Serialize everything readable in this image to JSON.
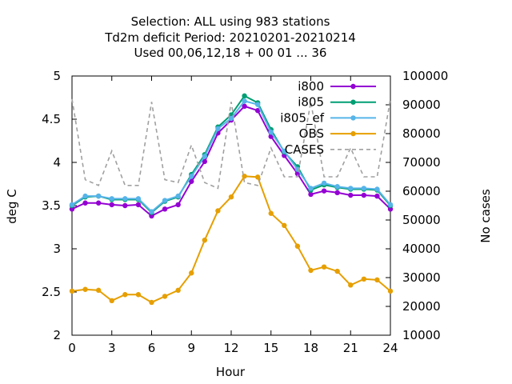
{
  "chart_data": {
    "type": "line",
    "title_lines": [
      "Selection: ALL using   983 stations",
      "Td2m deficit   Period: 20210201-20210214",
      "Used  00,06,12,18 + 00 01 ... 36"
    ],
    "xlabel": "Hour",
    "ylabel": "deg C",
    "y2label": "No cases",
    "xlim": [
      0,
      24
    ],
    "ylim": [
      2,
      5
    ],
    "y2lim": [
      10000,
      100000
    ],
    "x_ticks": [
      0,
      3,
      6,
      9,
      12,
      15,
      18,
      21,
      24
    ],
    "y_ticks": [
      "2",
      "2.5",
      "3",
      "3.5",
      "4",
      "4.5",
      "5"
    ],
    "y2_ticks": [
      "10000",
      "20000",
      "30000",
      "40000",
      "50000",
      "60000",
      "70000",
      "80000",
      "90000",
      "100000"
    ],
    "legend_position": "top-right",
    "grid": false,
    "x": [
      0,
      1,
      2,
      3,
      4,
      5,
      6,
      7,
      8,
      9,
      10,
      11,
      12,
      13,
      14,
      15,
      16,
      17,
      18,
      19,
      20,
      21,
      22,
      23,
      24
    ],
    "series": [
      {
        "name": "i800",
        "color": "#9400d3",
        "axis": "y",
        "values": [
          3.46,
          3.53,
          3.53,
          3.51,
          3.5,
          3.51,
          3.38,
          3.46,
          3.51,
          3.78,
          4.01,
          4.34,
          4.49,
          4.65,
          4.6,
          4.3,
          4.08,
          3.87,
          3.63,
          3.67,
          3.65,
          3.62,
          3.62,
          3.61,
          3.46
        ]
      },
      {
        "name": "i805",
        "color": "#009e73",
        "axis": "y",
        "values": [
          3.5,
          3.6,
          3.61,
          3.57,
          3.57,
          3.57,
          3.42,
          3.55,
          3.6,
          3.86,
          4.09,
          4.41,
          4.55,
          4.77,
          4.69,
          4.38,
          4.12,
          3.95,
          3.68,
          3.74,
          3.71,
          3.69,
          3.69,
          3.68,
          3.5
        ]
      },
      {
        "name": "i805_ef",
        "color": "#56b4e9",
        "axis": "y",
        "values": [
          3.51,
          3.61,
          3.61,
          3.58,
          3.58,
          3.58,
          3.43,
          3.56,
          3.61,
          3.84,
          4.07,
          4.39,
          4.51,
          4.71,
          4.67,
          4.35,
          4.13,
          3.92,
          3.7,
          3.76,
          3.72,
          3.7,
          3.7,
          3.69,
          3.51
        ]
      },
      {
        "name": "OBS",
        "color": "#e69f00",
        "axis": "y",
        "values": [
          2.51,
          2.53,
          2.52,
          2.4,
          2.47,
          2.47,
          2.38,
          2.45,
          2.52,
          2.72,
          3.1,
          3.44,
          3.6,
          3.84,
          3.83,
          3.41,
          3.27,
          3.03,
          2.75,
          2.79,
          2.74,
          2.58,
          2.65,
          2.64,
          2.51
        ]
      },
      {
        "name": "CASES",
        "color": "#a0a0a0",
        "axis": "y2",
        "dashed": true,
        "values": [
          92000,
          64000,
          62000,
          74000,
          62000,
          62000,
          91000,
          64000,
          63000,
          76000,
          63000,
          61000,
          91000,
          63000,
          62000,
          75000,
          65000,
          65000,
          91000,
          65000,
          65000,
          75000,
          65000,
          65000,
          92000
        ]
      }
    ]
  }
}
